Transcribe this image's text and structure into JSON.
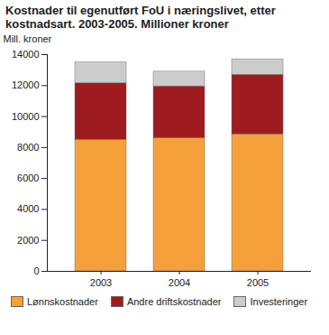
{
  "chart_data": {
    "type": "bar",
    "stacked": true,
    "title": "Kostnader til egenutført FoU i næringslivet, etter kostnadsart. 2003-2005. Millioner kroner",
    "y_label": "Mill. kroner",
    "categories": [
      "2003",
      "2004",
      "2005"
    ],
    "series": [
      {
        "name": "Lønnskostnader",
        "color": "#f5a03a",
        "values": [
          8500,
          8600,
          8850
        ]
      },
      {
        "name": "Andre driftskostnader",
        "color": "#9e1b20",
        "values": [
          3650,
          3350,
          3850
        ]
      },
      {
        "name": "Investeringer",
        "color": "#cccccc",
        "values": [
          1350,
          950,
          1000
        ]
      }
    ],
    "ylim": [
      0,
      14000
    ],
    "yticks": [
      0,
      2000,
      4000,
      6000,
      8000,
      10000,
      12000,
      14000
    ],
    "grid": false,
    "legend": "bottom"
  }
}
